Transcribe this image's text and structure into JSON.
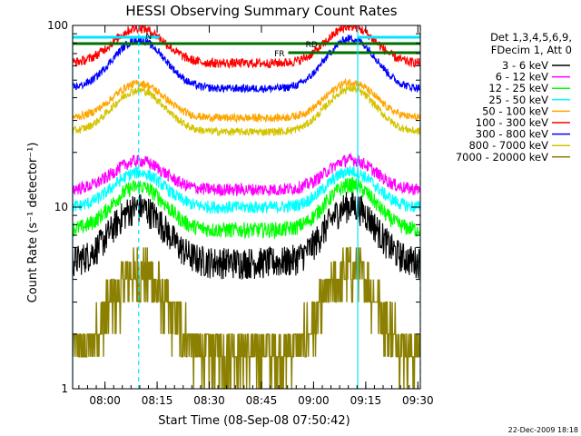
{
  "chart_data": {
    "type": "line",
    "title": "HESSI Observing Summary Count Rates",
    "xlabel": "Start Time (08-Sep-08 07:50:42)",
    "ylabel": "Count Rate (s⁻¹ detector⁻¹)",
    "yscale": "log",
    "ylim": [
      1,
      100
    ],
    "xlim_minutes": [
      0,
      100
    ],
    "x_ticks": [
      "08:00",
      "08:15",
      "08:30",
      "08:45",
      "09:00",
      "09:15",
      "09:30"
    ],
    "y_ticks": [
      "1",
      "10",
      "100"
    ],
    "legend_header": [
      "Det 1,3,4,5,6,9,",
      "FDecim 1, Att 0"
    ],
    "legend_position": "right",
    "series": [
      {
        "name": "3 - 6 keV",
        "color": "#000000",
        "base": 5,
        "amp": 5,
        "noise": 0.2
      },
      {
        "name": "6 - 12 keV",
        "color": "#ff00ff",
        "base": 12.5,
        "amp": 5.5,
        "noise": 0.08
      },
      {
        "name": "12 - 25 keV",
        "color": "#00ff00",
        "base": 7.5,
        "amp": 5.5,
        "noise": 0.1
      },
      {
        "name": "25 - 50 keV",
        "color": "#00ffff",
        "base": 10,
        "amp": 5.5,
        "noise": 0.08
      },
      {
        "name": "50 - 100 keV",
        "color": "#ffa500",
        "base": 31,
        "amp": 17,
        "noise": 0.05
      },
      {
        "name": "100 - 300 keV",
        "color": "#ff0000",
        "base": 62,
        "amp": 35,
        "noise": 0.06
      },
      {
        "name": "300 - 800 keV",
        "color": "#0000ff",
        "base": 45,
        "amp": 38,
        "noise": 0.05
      },
      {
        "name": "800 - 7000 keV",
        "color": "#d4c400",
        "base": 26,
        "amp": 18,
        "noise": 0.05
      },
      {
        "name": "7000 - 20000 keV",
        "color": "#8b8000",
        "base": 1.6,
        "amp": 2.8,
        "noise": 0.35
      }
    ],
    "peaks_minutes": [
      19,
      80
    ],
    "annotations": [
      {
        "text": "N",
        "color": "#00bfff"
      },
      {
        "text": "RD",
        "color": "#006400"
      },
      {
        "text": "FR",
        "color": "#006400"
      }
    ],
    "flag_colors": {
      "night": "#00e5ff",
      "flag": "#007000"
    },
    "timestamp": "22-Dec-2009 18:18"
  }
}
